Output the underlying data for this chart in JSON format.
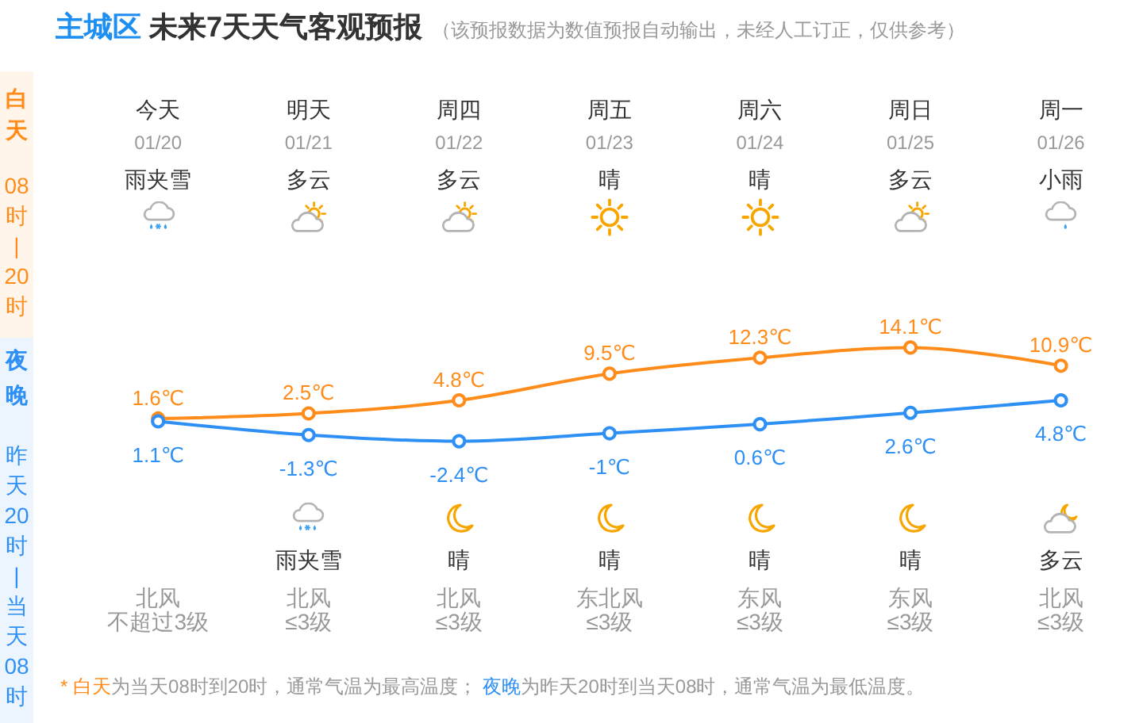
{
  "chart_data": {
    "type": "line",
    "title": "主城区 未来7天天气客观预报",
    "subtitle": "（该预报数据为数值预报自动输出，未经人工订正，仅供参考）",
    "categories": [
      "今天",
      "明天",
      "周四",
      "周五",
      "周六",
      "周日",
      "周一"
    ],
    "series": [
      {
        "name": "白天",
        "color": "#ff8c1a",
        "values": [
          1.6,
          2.5,
          4.8,
          9.5,
          12.3,
          14.1,
          10.9
        ],
        "value_labels": [
          "1.6℃",
          "2.5℃",
          "4.8℃",
          "9.5℃",
          "12.3℃",
          "14.1℃",
          "10.9℃"
        ]
      },
      {
        "name": "夜晚",
        "color": "#2e8ff5",
        "values": [
          1.1,
          -1.3,
          -2.4,
          -1,
          0.6,
          2.6,
          4.8
        ],
        "value_labels": [
          "1.1℃",
          "-1.3℃",
          "-2.4℃",
          "-1℃",
          "0.6℃",
          "2.6℃",
          "4.8℃"
        ]
      }
    ],
    "annotations": [
      "08时|20时",
      "昨天20时|当天08时",
      "01/20",
      "01/21",
      "01/22",
      "01/23",
      "01/24",
      "01/25",
      "01/26",
      "雨夹雪",
      "多云",
      "多云",
      "晴",
      "晴",
      "多云",
      "小雨",
      "雨夹雪",
      "晴",
      "晴",
      "晴",
      "晴",
      "多云",
      "北风",
      "北风",
      "北风",
      "东北风",
      "东风",
      "东风",
      "北风",
      "不超过3级",
      "≤3级",
      "≤3级",
      "≤3级",
      "≤3级",
      "≤3级",
      "≤3级",
      "* 白天为当天08时到20时，通常气温为最高温度； 夜晚为昨天20时到当天08时，通常气温为最低温度。"
    ],
    "legend": "left",
    "marker": "circle",
    "line_style": "solid",
    "tick_labels": "x"
  }
}
